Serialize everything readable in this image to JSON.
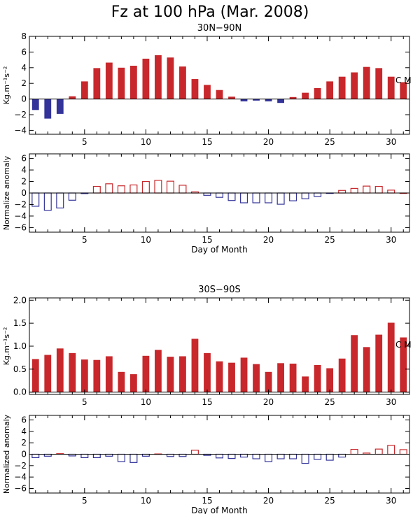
{
  "title": "Fz at 100 hPa (Mar. 2008)",
  "colors": {
    "positive": "#c8282c",
    "negative": "#33339a"
  },
  "chart_data": [
    {
      "type": "bar",
      "subtitle": "30N−90N",
      "ylabel": "Kg.m⁻¹s⁻²",
      "xlabel": "",
      "ylim": [
        -4.5,
        8
      ],
      "xlim": [
        0.5,
        31.5
      ],
      "yticks": [
        "−4",
        "−2",
        "0",
        "2",
        "4",
        "6",
        "8"
      ],
      "ytick_values": [
        -4,
        -2,
        0,
        2,
        4,
        6,
        8
      ],
      "xticks": [
        "5",
        "10",
        "15",
        "20",
        "25",
        "30"
      ],
      "xtick_values": [
        5,
        10,
        15,
        20,
        25,
        30
      ],
      "style": "filled",
      "annotation": "C  M",
      "x": [
        1,
        2,
        3,
        4,
        5,
        6,
        7,
        8,
        9,
        10,
        11,
        12,
        13,
        14,
        15,
        16,
        17,
        18,
        19,
        20,
        21,
        22,
        23,
        24,
        25,
        26,
        27,
        28,
        29,
        30,
        31
      ],
      "values": [
        -1.4,
        -2.5,
        -1.9,
        0.35,
        2.25,
        3.95,
        4.65,
        4.0,
        4.25,
        5.15,
        5.6,
        5.3,
        4.15,
        2.55,
        1.8,
        1.15,
        0.3,
        -0.3,
        -0.2,
        -0.3,
        -0.5,
        0.25,
        0.8,
        1.4,
        2.25,
        2.85,
        3.4,
        4.1,
        3.95,
        2.85,
        2.15
      ]
    },
    {
      "type": "bar",
      "subtitle": "",
      "ylabel": "Normalize anomaly",
      "xlabel": "Day of Month",
      "ylim": [
        -6.8,
        6.8
      ],
      "xlim": [
        0.5,
        31.5
      ],
      "yticks": [
        "−6",
        "−4",
        "−2",
        "0",
        "2",
        "4",
        "6"
      ],
      "ytick_values": [
        -6,
        -4,
        -2,
        0,
        2,
        4,
        6
      ],
      "xticks": [
        "5",
        "10",
        "15",
        "20",
        "25",
        "30"
      ],
      "xtick_values": [
        5,
        10,
        15,
        20,
        25,
        30
      ],
      "style": "outline",
      "annotation": "",
      "x": [
        1,
        2,
        3,
        4,
        5,
        6,
        7,
        8,
        9,
        10,
        11,
        12,
        13,
        14,
        15,
        16,
        17,
        18,
        19,
        20,
        21,
        22,
        23,
        24,
        25,
        26,
        27,
        28,
        29,
        30,
        31
      ],
      "values": [
        -2.3,
        -3.0,
        -2.6,
        -1.25,
        -0.1,
        1.15,
        1.6,
        1.25,
        1.4,
        2.0,
        2.2,
        2.05,
        1.35,
        0.2,
        -0.4,
        -0.75,
        -1.3,
        -1.7,
        -1.7,
        -1.7,
        -1.95,
        -1.35,
        -1.0,
        -0.6,
        -0.05,
        0.45,
        0.8,
        1.2,
        1.15,
        0.5,
        0.0
      ]
    },
    {
      "type": "bar",
      "subtitle": "30S−90S",
      "ylabel": "Kg.m⁻¹s⁻²",
      "xlabel": "",
      "ylim": [
        -0.05,
        2.05
      ],
      "xlim": [
        0.5,
        31.5
      ],
      "yticks": [
        "0.0",
        "0.5",
        "1.0",
        "1.5",
        "2.0"
      ],
      "ytick_values": [
        0.0,
        0.5,
        1.0,
        1.5,
        2.0
      ],
      "xticks": [
        "5",
        "10",
        "15",
        "20",
        "25",
        "30"
      ],
      "xtick_values": [
        5,
        10,
        15,
        20,
        25,
        30
      ],
      "style": "filled",
      "annotation": "C  M",
      "x": [
        1,
        2,
        3,
        4,
        5,
        6,
        7,
        8,
        9,
        10,
        11,
        12,
        13,
        14,
        15,
        16,
        17,
        18,
        19,
        20,
        21,
        22,
        23,
        24,
        25,
        26,
        27,
        28,
        29,
        30,
        31
      ],
      "values": [
        0.72,
        0.81,
        0.95,
        0.85,
        0.71,
        0.7,
        0.78,
        0.44,
        0.39,
        0.79,
        0.92,
        0.77,
        0.78,
        1.16,
        0.85,
        0.67,
        0.64,
        0.75,
        0.61,
        0.44,
        0.63,
        0.62,
        0.34,
        0.59,
        0.52,
        0.73,
        1.24,
        0.98,
        1.25,
        1.51,
        1.19
      ]
    },
    {
      "type": "bar",
      "subtitle": "",
      "ylabel": "Normalized anomaly",
      "xlabel": "Day of Month",
      "ylim": [
        -6.8,
        6.8
      ],
      "xlim": [
        0.5,
        31.5
      ],
      "yticks": [
        "−6",
        "−4",
        "−2",
        "0",
        "2",
        "4",
        "6"
      ],
      "ytick_values": [
        -6,
        -4,
        -2,
        0,
        2,
        4,
        6
      ],
      "xticks": [
        "5",
        "10",
        "15",
        "20",
        "25",
        "30"
      ],
      "xtick_values": [
        5,
        10,
        15,
        20,
        25,
        30
      ],
      "style": "outline",
      "annotation": "",
      "x": [
        1,
        2,
        3,
        4,
        5,
        6,
        7,
        8,
        9,
        10,
        11,
        12,
        13,
        14,
        15,
        16,
        17,
        18,
        19,
        20,
        21,
        22,
        23,
        24,
        25,
        26,
        27,
        28,
        29,
        30,
        31
      ],
      "values": [
        -0.6,
        -0.35,
        0.1,
        -0.3,
        -0.6,
        -0.6,
        -0.35,
        -1.3,
        -1.45,
        -0.35,
        0.05,
        -0.4,
        -0.4,
        0.7,
        -0.2,
        -0.65,
        -0.75,
        -0.5,
        -0.8,
        -1.3,
        -0.8,
        -0.8,
        -1.6,
        -0.9,
        -1.05,
        -0.5,
        0.85,
        0.2,
        0.9,
        1.55,
        0.8
      ]
    }
  ]
}
